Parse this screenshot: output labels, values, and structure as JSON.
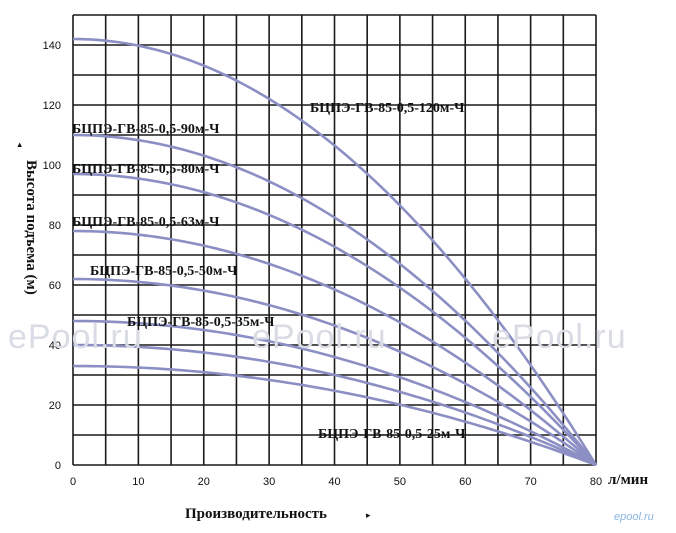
{
  "watermark": "ePool.ru",
  "logo": "epool.ru",
  "chart_data": {
    "type": "line",
    "title": "",
    "xlabel": "Производительность",
    "xlabel_marker": "▸",
    "ylabel": "Высота подъема (м)",
    "ylabel_marker": "▸",
    "x_unit": "л/мин",
    "xlim": [
      0,
      80
    ],
    "ylim": [
      0,
      150
    ],
    "x_ticks": [
      0,
      10,
      20,
      30,
      40,
      50,
      60,
      70,
      80
    ],
    "y_ticks": [
      0,
      20,
      40,
      60,
      80,
      100,
      120,
      140
    ],
    "grid": true,
    "colors": {
      "curve": "#8c8fc4",
      "grid": "#1a1a1a",
      "text": "#111111"
    },
    "series": [
      {
        "name": "БЦПЭ-ГВ-85-0,5-120м-Ч",
        "shutoff_head": 142,
        "max_flow": 80
      },
      {
        "name": "БЦПЭ-ГВ-85-0,5-90м-Ч",
        "shutoff_head": 110,
        "max_flow": 80
      },
      {
        "name": "БЦПЭ-ГВ-85-0,5-80м-Ч",
        "shutoff_head": 97,
        "max_flow": 80
      },
      {
        "name": "БЦПЭ-ГВ-85-0,5-63м-Ч",
        "shutoff_head": 78,
        "max_flow": 80
      },
      {
        "name": "БЦПЭ-ГВ-85-0,5-50м-Ч",
        "shutoff_head": 62,
        "max_flow": 80
      },
      {
        "name": "БЦПЭ-ГВ-85-0,5-35м-Ч",
        "shutoff_head": 48,
        "max_flow": 80
      },
      {
        "name": "",
        "shutoff_head": 40,
        "max_flow": 80
      },
      {
        "name": "БЦПЭ-ГВ-85-0,5-25м-Ч",
        "shutoff_head": 33,
        "max_flow": 80
      }
    ]
  }
}
